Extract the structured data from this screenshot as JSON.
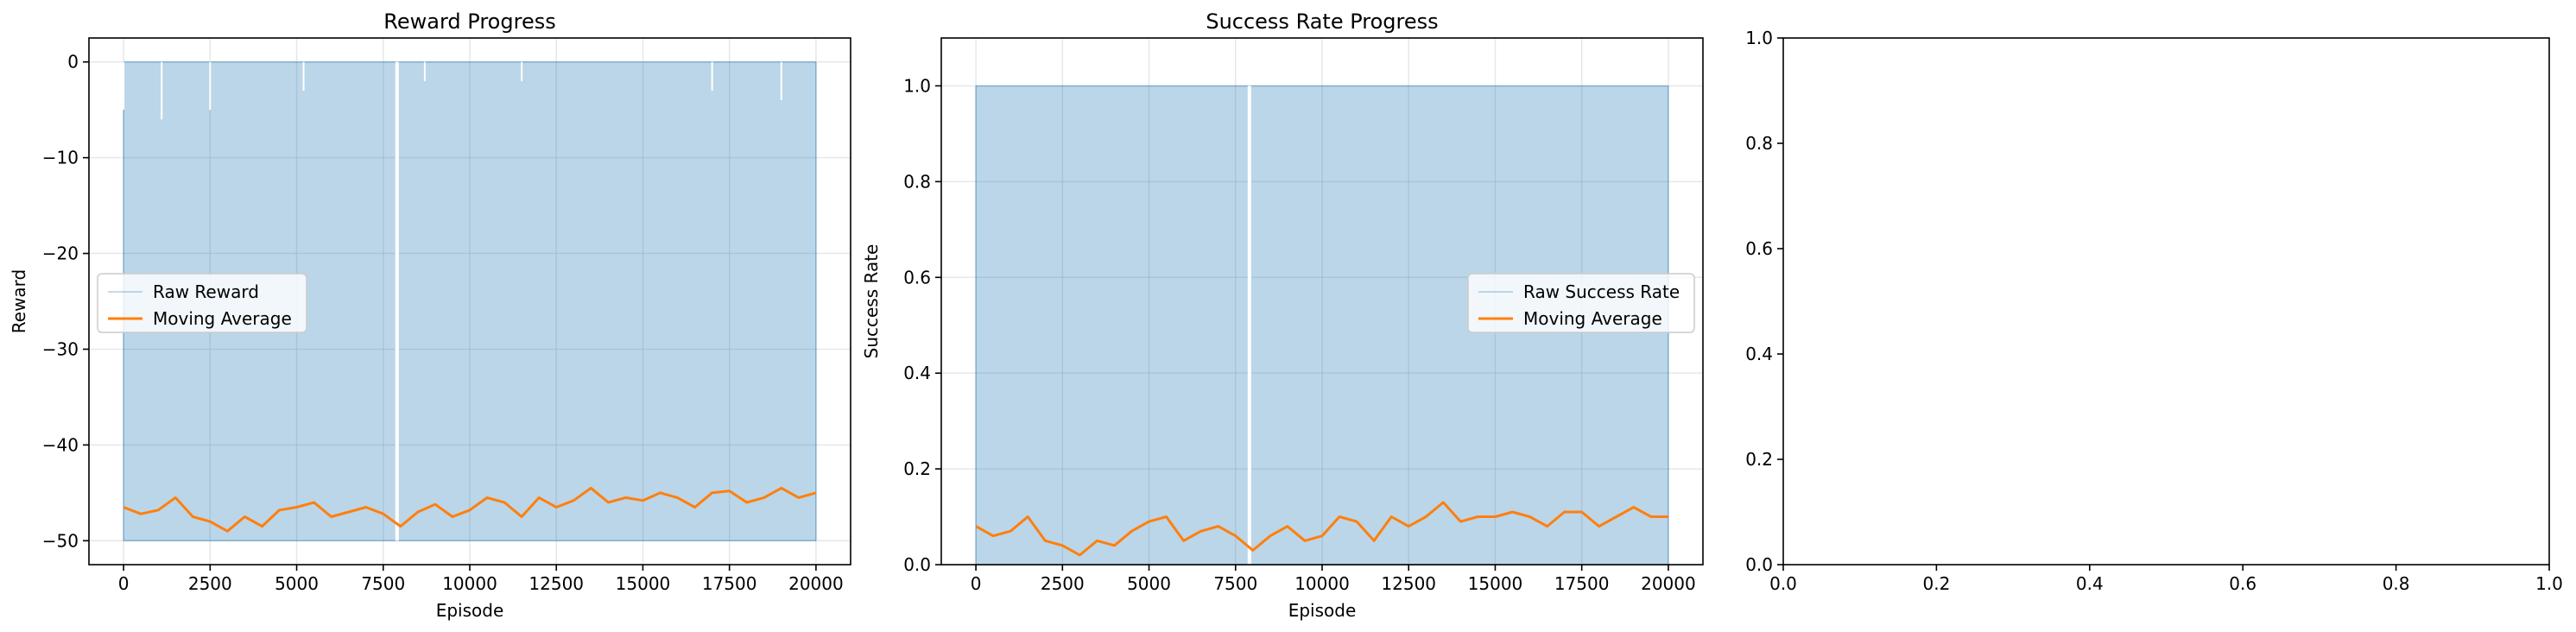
{
  "chart_data": [
    {
      "type": "line",
      "title": "Reward Progress",
      "xlabel": "Episode",
      "ylabel": "Reward",
      "xlim": [
        -1000,
        21000
      ],
      "ylim": [
        -52.5,
        2.5
      ],
      "xticks": [
        0,
        2500,
        5000,
        7500,
        10000,
        12500,
        15000,
        17500,
        20000
      ],
      "xtick_labels": [
        "0",
        "2500",
        "5000",
        "7500",
        "10000",
        "12500",
        "15000",
        "17500",
        "20000"
      ],
      "yticks": [
        -50,
        -40,
        -30,
        -20,
        -10,
        0
      ],
      "ytick_labels": [
        "−50",
        "−40",
        "−30",
        "−20",
        "−10",
        "0"
      ],
      "grid": true,
      "legend_position": "center-left",
      "series": [
        {
          "name": "Raw Reward",
          "style": "filled-raw",
          "color": "#1f77b4",
          "x_range": [
            0,
            20000
          ],
          "baseline": -50,
          "top": 0,
          "gaps": [
            7900
          ],
          "dips": [
            [
              0,
              -5
            ],
            [
              1100,
              -6
            ],
            [
              2500,
              -5
            ],
            [
              5200,
              -3
            ],
            [
              8700,
              -2
            ],
            [
              11500,
              -2
            ],
            [
              17000,
              -3
            ],
            [
              19000,
              -4
            ]
          ]
        },
        {
          "name": "Moving Average",
          "color": "#ff7f0e",
          "x": [
            0,
            500,
            1000,
            1500,
            2000,
            2500,
            3000,
            3500,
            4000,
            4500,
            5000,
            5500,
            6000,
            6500,
            7000,
            7500,
            8000,
            8500,
            9000,
            9500,
            10000,
            10500,
            11000,
            11500,
            12000,
            12500,
            13000,
            13500,
            14000,
            14500,
            15000,
            15500,
            16000,
            16500,
            17000,
            17500,
            18000,
            18500,
            19000,
            19500,
            20000
          ],
          "y": [
            -46.5,
            -47.2,
            -46.8,
            -45.5,
            -47.5,
            -48.0,
            -49.0,
            -47.5,
            -48.5,
            -46.8,
            -46.5,
            -46.0,
            -47.5,
            -47.0,
            -46.5,
            -47.2,
            -48.5,
            -47.0,
            -46.2,
            -47.5,
            -46.8,
            -45.5,
            -46.0,
            -47.5,
            -45.5,
            -46.5,
            -45.8,
            -44.5,
            -46.0,
            -45.5,
            -45.8,
            -45.0,
            -45.5,
            -46.5,
            -45.0,
            -44.8,
            -46.0,
            -45.5,
            -44.5,
            -45.5,
            -45.0
          ]
        }
      ]
    },
    {
      "type": "line",
      "title": "Success Rate Progress",
      "xlabel": "Episode",
      "ylabel": "Success Rate",
      "xlim": [
        -1000,
        21000
      ],
      "ylim": [
        0,
        1.1
      ],
      "xticks": [
        0,
        2500,
        5000,
        7500,
        10000,
        12500,
        15000,
        17500,
        20000
      ],
      "xtick_labels": [
        "0",
        "2500",
        "5000",
        "7500",
        "10000",
        "12500",
        "15000",
        "17500",
        "20000"
      ],
      "yticks": [
        0.0,
        0.2,
        0.4,
        0.6,
        0.8,
        1.0
      ],
      "ytick_labels": [
        "0.0",
        "0.2",
        "0.4",
        "0.6",
        "0.8",
        "1.0"
      ],
      "grid": true,
      "legend_position": "center-right",
      "series": [
        {
          "name": "Raw Success Rate",
          "style": "filled-raw",
          "color": "#1f77b4",
          "x_range": [
            0,
            20000
          ],
          "baseline": 0,
          "top": 1.0,
          "gaps": [
            7900
          ]
        },
        {
          "name": "Moving Average",
          "color": "#ff7f0e",
          "x": [
            0,
            500,
            1000,
            1500,
            2000,
            2500,
            3000,
            3500,
            4000,
            4500,
            5000,
            5500,
            6000,
            6500,
            7000,
            7500,
            8000,
            8500,
            9000,
            9500,
            10000,
            10500,
            11000,
            11500,
            12000,
            12500,
            13000,
            13500,
            14000,
            14500,
            15000,
            15500,
            16000,
            16500,
            17000,
            17500,
            18000,
            18500,
            19000,
            19500,
            20000
          ],
          "y": [
            0.08,
            0.06,
            0.07,
            0.1,
            0.05,
            0.04,
            0.02,
            0.05,
            0.04,
            0.07,
            0.09,
            0.1,
            0.05,
            0.07,
            0.08,
            0.06,
            0.03,
            0.06,
            0.08,
            0.05,
            0.06,
            0.1,
            0.09,
            0.05,
            0.1,
            0.08,
            0.1,
            0.13,
            0.09,
            0.1,
            0.1,
            0.11,
            0.1,
            0.08,
            0.11,
            0.11,
            0.08,
            0.1,
            0.12,
            0.1,
            0.1
          ]
        }
      ]
    },
    {
      "type": "line",
      "title": "",
      "xlabel": "",
      "ylabel": "",
      "xlim": [
        0,
        1
      ],
      "ylim": [
        0,
        1
      ],
      "xticks": [
        0.0,
        0.2,
        0.4,
        0.6,
        0.8,
        1.0
      ],
      "xtick_labels": [
        "0.0",
        "0.2",
        "0.4",
        "0.6",
        "0.8",
        "1.0"
      ],
      "yticks": [
        0.0,
        0.2,
        0.4,
        0.6,
        0.8,
        1.0
      ],
      "ytick_labels": [
        "0.0",
        "0.2",
        "0.4",
        "0.6",
        "0.8",
        "1.0"
      ],
      "grid": false,
      "series": []
    }
  ]
}
